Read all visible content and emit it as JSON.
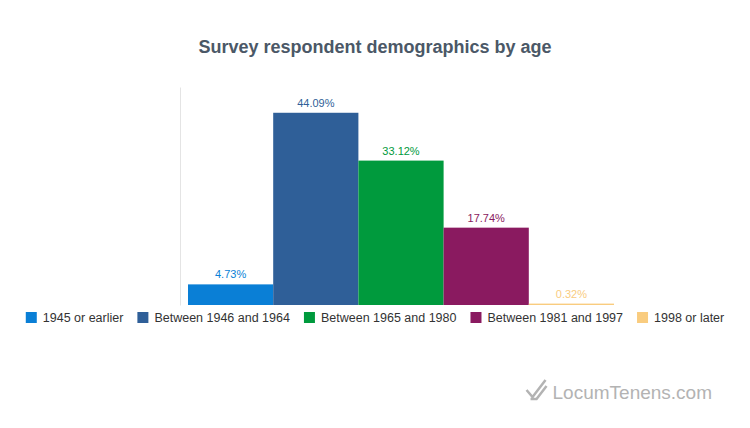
{
  "chart_data": {
    "type": "bar",
    "title": "Survey respondent demographics by age",
    "categories": [
      "1945 or earlier",
      "Between 1946 and 1964",
      "Between 1965 and 1980",
      "Between 1981 and 1997",
      "1998 or later"
    ],
    "values": [
      4.73,
      44.09,
      33.12,
      17.74,
      0.32
    ],
    "value_labels": [
      "4.73%",
      "44.09%",
      "33.12%",
      "17.74%",
      "0.32%"
    ],
    "colors": [
      "#0a7fd6",
      "#2f5f98",
      "#009a3d",
      "#8a1a60",
      "#f9cc7f"
    ],
    "ylim": [
      0,
      50
    ],
    "data_labels": true,
    "tick_labels": false,
    "legend": "bottom",
    "annotations": [
      "LocumTenens.com"
    ]
  }
}
